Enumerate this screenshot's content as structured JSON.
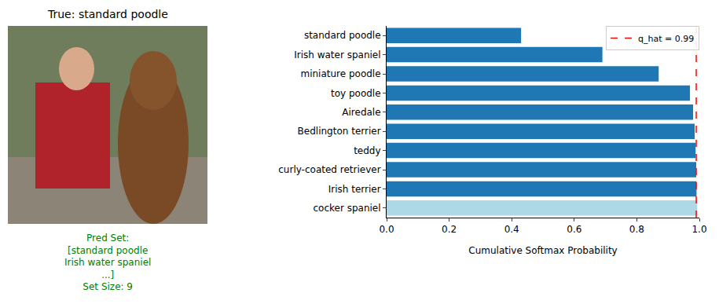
{
  "image_panel": {
    "title": "True: standard poodle",
    "caption": [
      "Pred Set:",
      "[standard poodle",
      "Irish water spaniel",
      "...]",
      "Set Size: 9"
    ],
    "caption_color": "green"
  },
  "chart_data": {
    "type": "bar",
    "orientation": "horizontal",
    "categories": [
      "standard poodle",
      "Irish water spaniel",
      "miniature poodle",
      "toy poodle",
      "Airedale",
      "Bedlington terrier",
      "teddy",
      "curly-coated retriever",
      "Irish terrier",
      "cocker spaniel"
    ],
    "values": [
      0.43,
      0.69,
      0.87,
      0.97,
      0.98,
      0.985,
      0.988,
      0.99,
      0.991,
      0.993
    ],
    "colors": [
      "#1f77b4",
      "#1f77b4",
      "#1f77b4",
      "#1f77b4",
      "#1f77b4",
      "#1f77b4",
      "#1f77b4",
      "#1f77b4",
      "#1f77b4",
      "#add8e6"
    ],
    "x_label": "Cumulative Softmax Probability",
    "xlim": [
      0,
      1
    ],
    "xticks": [
      {
        "value": 0,
        "label": "0.0"
      },
      0.2,
      0.4,
      0.6,
      0.8,
      {
        "value": 1,
        "label": "1.0"
      }
    ],
    "threshold": {
      "value": 0.99,
      "label": "q_hat = 0.99",
      "color": "red",
      "line_style": "dashed"
    },
    "legend": "upper right",
    "grid": false
  }
}
